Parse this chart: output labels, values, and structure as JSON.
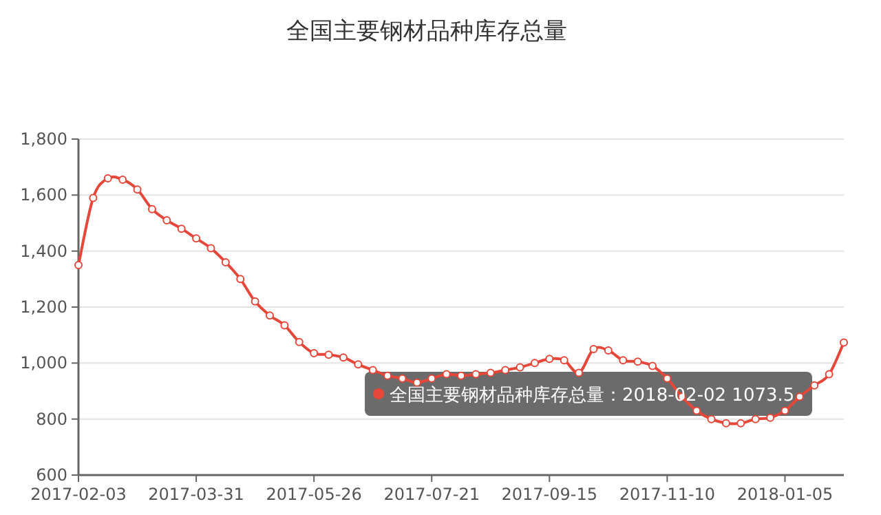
{
  "chart_data": {
    "type": "line",
    "title": "全国主要钢材品种库存总量",
    "x": [
      "2017-02-03",
      "2017-02-10",
      "2017-02-17",
      "2017-02-24",
      "2017-03-03",
      "2017-03-10",
      "2017-03-17",
      "2017-03-24",
      "2017-03-31",
      "2017-04-07",
      "2017-04-14",
      "2017-04-21",
      "2017-04-28",
      "2017-05-05",
      "2017-05-12",
      "2017-05-19",
      "2017-05-26",
      "2017-06-02",
      "2017-06-09",
      "2017-06-16",
      "2017-06-23",
      "2017-06-30",
      "2017-07-07",
      "2017-07-14",
      "2017-07-21",
      "2017-07-28",
      "2017-08-04",
      "2017-08-11",
      "2017-08-18",
      "2017-08-25",
      "2017-09-01",
      "2017-09-08",
      "2017-09-15",
      "2017-09-22",
      "2017-09-29",
      "2017-10-06",
      "2017-10-13",
      "2017-10-20",
      "2017-10-27",
      "2017-11-03",
      "2017-11-10",
      "2017-11-17",
      "2017-11-24",
      "2017-12-01",
      "2017-12-08",
      "2017-12-15",
      "2017-12-22",
      "2017-12-29",
      "2018-01-05",
      "2018-01-12",
      "2018-01-19",
      "2018-01-26",
      "2018-02-02"
    ],
    "series": [
      {
        "color": "#e5473a",
        "values": [
          1350,
          1590,
          1660,
          1655,
          1620,
          1550,
          1510,
          1480,
          1445,
          1410,
          1360,
          1300,
          1220,
          1170,
          1135,
          1075,
          1035,
          1030,
          1020,
          995,
          975,
          955,
          945,
          930,
          945,
          960,
          955,
          960,
          965,
          975,
          985,
          1000,
          1015,
          1010,
          965,
          1050,
          1045,
          1010,
          1005,
          990,
          945,
          880,
          830,
          800,
          785,
          785,
          800,
          805,
          830,
          880,
          920,
          960,
          1073.5
        ]
      }
    ],
    "xlim": [
      "2017-02-03",
      "2018-02-02"
    ],
    "xticks": [
      "2017-02-03",
      "2017-03-31",
      "2017-05-26",
      "2017-07-21",
      "2017-09-15",
      "2017-11-10",
      "2018-01-05"
    ],
    "ylim": [
      600,
      1800
    ],
    "yticks": [
      {
        "value": 600,
        "label": "600"
      },
      {
        "value": 800,
        "label": "800"
      },
      {
        "value": 1000,
        "label": "1,000"
      },
      {
        "value": 1200,
        "label": "1,200"
      },
      {
        "value": 1400,
        "label": "1,400"
      },
      {
        "value": 1600,
        "label": "1,600"
      },
      {
        "value": 1800,
        "label": "1,800"
      }
    ],
    "grid": "y",
    "marker": "circle",
    "line_style": "solid",
    "annotations": [
      "全国主要钢材品种库存总量：2018-02-02 1073.5"
    ]
  }
}
